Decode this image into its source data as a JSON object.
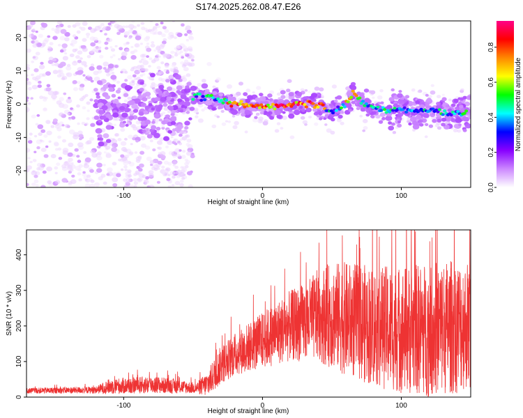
{
  "title": "S174.2025.262.08.47.E26",
  "chart_data": [
    {
      "type": "heatmap",
      "name": "spectrogram",
      "xlabel": "Height of straight line (km)",
      "ylabel": "Frequency (Hz)",
      "xlim": [
        -170,
        150
      ],
      "ylim": [
        -25,
        25
      ],
      "xticks": [
        -100,
        0,
        100
      ],
      "yticks": [
        -20,
        -10,
        0,
        10,
        20
      ],
      "colorbar": {
        "label": "Normalized spectral amplitude",
        "range": [
          0,
          0.95
        ],
        "ticks": [
          "0.0",
          "0.2",
          "0.4",
          "0.6",
          "0.8"
        ],
        "tick_values": [
          0,
          0.2,
          0.4,
          0.6,
          0.8
        ],
        "colormap": [
          "#ffffff",
          "#cc88ff",
          "#8800ff",
          "#0000ff",
          "#00ffff",
          "#00ff00",
          "#ffff00",
          "#ff8800",
          "#ff0000",
          "#ff0088"
        ]
      },
      "dominant_frequency_track": {
        "x": [
          -50,
          -40,
          -30,
          -20,
          -10,
          0,
          10,
          20,
          30,
          40,
          50,
          60,
          65,
          70,
          80,
          90,
          100,
          110,
          120,
          130,
          140,
          148
        ],
        "y": [
          2.5,
          2,
          1,
          0,
          -0.5,
          -0.5,
          -0.5,
          0,
          0.5,
          0,
          -2,
          0,
          3,
          1,
          -1,
          -2,
          -1.5,
          -2,
          -2,
          -2.5,
          -2.5,
          -2.5
        ]
      }
    },
    {
      "type": "line",
      "name": "snr",
      "xlabel": "Height of straight line (km)",
      "ylabel": "SNR (10 * v/v)",
      "xlim": [
        -170,
        150
      ],
      "ylim": [
        0,
        470
      ],
      "xticks": [
        -100,
        0,
        100
      ],
      "yticks": [
        0,
        100,
        200,
        300,
        400
      ],
      "color": "#ee3333",
      "envelope": {
        "x": [
          -170,
          -120,
          -110,
          -80,
          -60,
          -48,
          -40,
          -30,
          -20,
          -10,
          0,
          10,
          20,
          30,
          40,
          50,
          60,
          80,
          100,
          120,
          140,
          150
        ],
        "mean": [
          18,
          20,
          30,
          35,
          30,
          25,
          35,
          90,
          120,
          140,
          160,
          180,
          200,
          210,
          230,
          230,
          220,
          200,
          190,
          190,
          200,
          205
        ],
        "spread": [
          8,
          10,
          22,
          25,
          20,
          15,
          35,
          55,
          60,
          70,
          80,
          90,
          100,
          110,
          130,
          150,
          160,
          170,
          180,
          190,
          190,
          180
        ]
      }
    }
  ]
}
